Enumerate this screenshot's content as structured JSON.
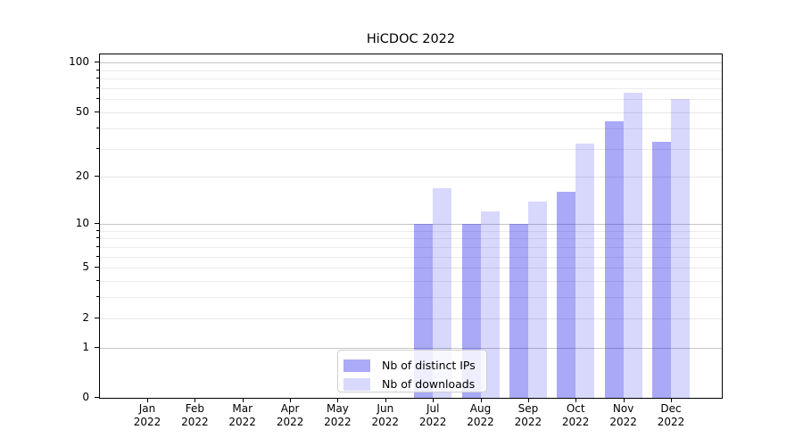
{
  "window": {
    "background": "#ffffff"
  },
  "chart_data": {
    "type": "bar",
    "title": "HiCDOC 2022",
    "year_label": "2022",
    "months": [
      "Jan",
      "Feb",
      "Mar",
      "Apr",
      "May",
      "Jun",
      "Jul",
      "Aug",
      "Sep",
      "Oct",
      "Nov",
      "Dec"
    ],
    "series": [
      {
        "name": "Nb of distinct IPs",
        "color": "rgba(10,10,235,0.35)",
        "solid_hex": "#aaaaf8",
        "values": [
          0,
          0,
          0,
          0,
          0,
          0,
          10,
          10,
          10,
          16,
          44,
          33
        ]
      },
      {
        "name": "Nb of downloads",
        "color": "rgba(10,10,235,0.16)",
        "solid_hex": "#d9d9fb",
        "values": [
          0,
          0,
          0,
          0,
          0,
          0,
          17,
          12,
          14,
          32,
          66,
          60
        ]
      }
    ],
    "xlabel": "",
    "ylabel": "",
    "yscale": "log1p",
    "ylim": [
      0,
      113
    ],
    "yticks": [
      0,
      1,
      2,
      5,
      10,
      20,
      50,
      100
    ],
    "yticks_emphasized": [
      1,
      10,
      100
    ],
    "yticks_minor": [
      3,
      4,
      6,
      7,
      8,
      9,
      30,
      40,
      60,
      70,
      80,
      90
    ],
    "grid": true,
    "legend_position": "lower-center-inside",
    "colors": {
      "grid_major": "#e6e6e6",
      "grid_minor": "#ececec",
      "grid_emphasized": "#c6c6c6",
      "spine": "#000000",
      "text": "#000000"
    }
  }
}
